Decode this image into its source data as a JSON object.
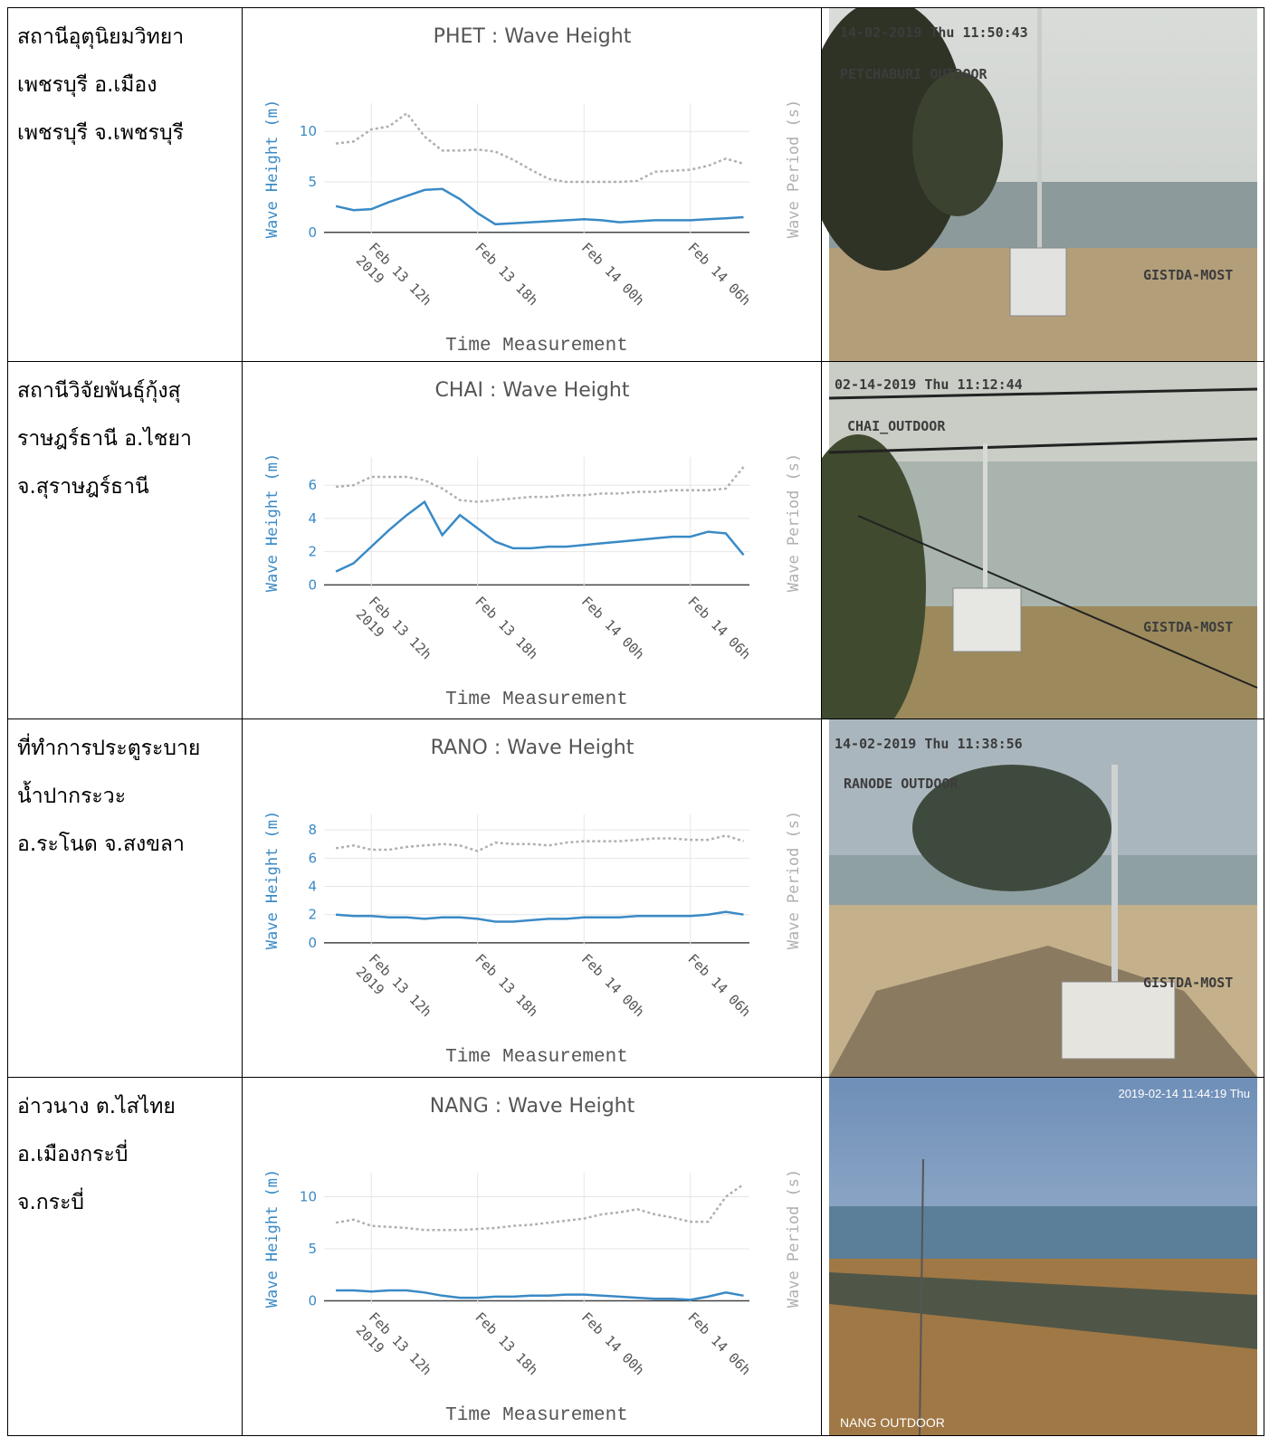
{
  "stations": [
    {
      "lines": [
        "สถานีอุตุนิยมวิทยา",
        "เพชรบุรี อ.เมือง",
        "เพชรบุรี จ.เพชรบุรี"
      ]
    },
    {
      "lines": [
        "สถานีวิจัยพันธุ์กุ้งสุ",
        "ราษฎร์ธานี อ.ไชยา",
        "จ.สุราษฎร์ธานี"
      ]
    },
    {
      "lines": [
        "ที่ทำการประตูระบาย",
        "น้ำปากระวะ",
        "อ.ระโนด จ.สงขลา"
      ]
    },
    {
      "lines": [
        "อ่าวนาง ต.ไสไทย",
        "อ.เมืองกระบี่",
        "จ.กระบี่"
      ]
    }
  ],
  "photos": [
    {
      "timestamp": "14-02-2019 Thu 11:50:43",
      "label": "PETCHABURI OUTDOOR",
      "watermark": "GISTDA-MOST"
    },
    {
      "timestamp": "02-14-2019 Thu 11:12:44",
      "label": "CHAI_OUTDOOR",
      "watermark": "GISTDA-MOST"
    },
    {
      "timestamp": "14-02-2019 Thu 11:38:56",
      "label": "RANODE OUTDOOR",
      "watermark": "GISTDA-MOST"
    },
    {
      "timestamp": "2019-02-14 11:44:19 Thu",
      "label": "NANG OUTDOOR"
    }
  ],
  "chart_data": [
    {
      "type": "line",
      "title": "PHET : Wave Height",
      "x_label": "Time Measurement",
      "y_label": "Wave Height (m)",
      "y2_label": "Wave Period (s)",
      "year": "2019",
      "grid": true,
      "x": [
        "2019-02-13T10:00",
        "2019-02-13T11:00",
        "2019-02-13T12:00",
        "2019-02-13T13:00",
        "2019-02-13T14:00",
        "2019-02-13T15:00",
        "2019-02-13T16:00",
        "2019-02-13T17:00",
        "2019-02-13T18:00",
        "2019-02-13T19:00",
        "2019-02-13T20:00",
        "2019-02-13T21:00",
        "2019-02-13T22:00",
        "2019-02-13T23:00",
        "2019-02-14T00:00",
        "2019-02-14T01:00",
        "2019-02-14T02:00",
        "2019-02-14T03:00",
        "2019-02-14T04:00",
        "2019-02-14T05:00",
        "2019-02-14T06:00",
        "2019-02-14T07:00",
        "2019-02-14T08:00",
        "2019-02-14T09:00"
      ],
      "xlim": [
        "2019-02-13T09:20",
        "2019-02-14T09:20"
      ],
      "xticks": [
        {
          "value": "2019-02-13T12:00",
          "label": "Feb 13 12h"
        },
        {
          "value": "2019-02-13T18:00",
          "label": "Feb 13 18h"
        },
        {
          "value": "2019-02-14T00:00",
          "label": "Feb 14 00h"
        },
        {
          "value": "2019-02-14T06:00",
          "label": "Feb 14 06h"
        }
      ],
      "ylim": [
        -0.2,
        12.8
      ],
      "yticks": [
        0,
        5,
        10
      ],
      "y2lim": [
        -0.2,
        12.8
      ],
      "series": [
        {
          "color": "#3a8ac6",
          "values": [
            2.6,
            2.2,
            2.3,
            3.0,
            3.6,
            4.2,
            4.3,
            3.3,
            1.9,
            0.8,
            0.9,
            1.0,
            1.1,
            1.2,
            1.3,
            1.2,
            1.0,
            1.1,
            1.2,
            1.2,
            1.2,
            1.3,
            1.4,
            1.5
          ]
        },
        {
          "color": "#b0b0b0",
          "axis": "y2",
          "dash": "dot",
          "values": [
            8.8,
            9.0,
            10.2,
            10.5,
            11.8,
            9.5,
            8.1,
            8.1,
            8.2,
            8.0,
            7.2,
            6.2,
            5.3,
            5.0,
            5.0,
            5.0,
            5.0,
            5.1,
            6.0,
            6.1,
            6.2,
            6.6,
            7.3,
            6.8
          ]
        }
      ]
    },
    {
      "type": "line",
      "title": "CHAI : Wave Height",
      "x_label": "Time Measurement",
      "y_label": "Wave Height (m)",
      "y2_label": "Wave Period (s)",
      "year": "2019",
      "grid": true,
      "x": [
        "2019-02-13T10:00",
        "2019-02-13T11:00",
        "2019-02-13T12:00",
        "2019-02-13T13:00",
        "2019-02-13T14:00",
        "2019-02-13T15:00",
        "2019-02-13T16:00",
        "2019-02-13T17:00",
        "2019-02-13T18:00",
        "2019-02-13T19:00",
        "2019-02-13T20:00",
        "2019-02-13T21:00",
        "2019-02-13T22:00",
        "2019-02-13T23:00",
        "2019-02-14T00:00",
        "2019-02-14T01:00",
        "2019-02-14T02:00",
        "2019-02-14T03:00",
        "2019-02-14T04:00",
        "2019-02-14T05:00",
        "2019-02-14T06:00",
        "2019-02-14T07:00",
        "2019-02-14T08:00",
        "2019-02-14T09:00"
      ],
      "xlim": [
        "2019-02-13T09:20",
        "2019-02-14T09:20"
      ],
      "xticks": [
        {
          "value": "2019-02-13T12:00",
          "label": "Feb 13 12h"
        },
        {
          "value": "2019-02-13T18:00",
          "label": "Feb 13 18h"
        },
        {
          "value": "2019-02-14T00:00",
          "label": "Feb 14 00h"
        },
        {
          "value": "2019-02-14T06:00",
          "label": "Feb 14 06h"
        }
      ],
      "ylim": [
        -0.2,
        7.7
      ],
      "yticks": [
        0,
        2,
        4,
        6
      ],
      "y2lim": [
        -0.2,
        7.7
      ],
      "series": [
        {
          "color": "#3a8ac6",
          "values": [
            0.8,
            1.3,
            2.3,
            3.3,
            4.2,
            5.0,
            3.0,
            4.2,
            3.4,
            2.6,
            2.2,
            2.2,
            2.3,
            2.3,
            2.4,
            2.5,
            2.6,
            2.7,
            2.8,
            2.9,
            2.9,
            3.2,
            3.1,
            1.8
          ]
        },
        {
          "color": "#b0b0b0",
          "axis": "y2",
          "dash": "dot",
          "values": [
            5.9,
            6.0,
            6.5,
            6.5,
            6.5,
            6.3,
            5.8,
            5.1,
            5.0,
            5.1,
            5.2,
            5.3,
            5.3,
            5.4,
            5.4,
            5.5,
            5.5,
            5.6,
            5.6,
            5.7,
            5.7,
            5.7,
            5.8,
            7.1
          ]
        }
      ]
    },
    {
      "type": "line",
      "title": "RANO : Wave Height",
      "x_label": "Time Measurement",
      "y_label": "Wave Height (m)",
      "y2_label": "Wave Period (s)",
      "year": "2019",
      "grid": true,
      "x": [
        "2019-02-13T10:00",
        "2019-02-13T11:00",
        "2019-02-13T12:00",
        "2019-02-13T13:00",
        "2019-02-13T14:00",
        "2019-02-13T15:00",
        "2019-02-13T16:00",
        "2019-02-13T17:00",
        "2019-02-13T18:00",
        "2019-02-13T19:00",
        "2019-02-13T20:00",
        "2019-02-13T21:00",
        "2019-02-13T22:00",
        "2019-02-13T23:00",
        "2019-02-14T00:00",
        "2019-02-14T01:00",
        "2019-02-14T02:00",
        "2019-02-14T03:00",
        "2019-02-14T04:00",
        "2019-02-14T05:00",
        "2019-02-14T06:00",
        "2019-02-14T07:00",
        "2019-02-14T08:00",
        "2019-02-14T09:00"
      ],
      "xlim": [
        "2019-02-13T09:20",
        "2019-02-14T09:20"
      ],
      "xticks": [
        {
          "value": "2019-02-13T12:00",
          "label": "Feb 13 12h"
        },
        {
          "value": "2019-02-13T18:00",
          "label": "Feb 13 18h"
        },
        {
          "value": "2019-02-14T00:00",
          "label": "Feb 14 00h"
        },
        {
          "value": "2019-02-14T06:00",
          "label": "Feb 14 06h"
        }
      ],
      "ylim": [
        -0.2,
        9.1
      ],
      "yticks": [
        0,
        2,
        4,
        6,
        8
      ],
      "y2lim": [
        -0.2,
        9.1
      ],
      "series": [
        {
          "color": "#3a8ac6",
          "values": [
            2.0,
            1.9,
            1.9,
            1.8,
            1.8,
            1.7,
            1.8,
            1.8,
            1.7,
            1.5,
            1.5,
            1.6,
            1.7,
            1.7,
            1.8,
            1.8,
            1.8,
            1.9,
            1.9,
            1.9,
            1.9,
            2.0,
            2.2,
            2.0
          ]
        },
        {
          "color": "#b0b0b0",
          "axis": "y2",
          "dash": "dot",
          "values": [
            6.7,
            6.9,
            6.6,
            6.6,
            6.8,
            6.9,
            7.0,
            6.9,
            6.5,
            7.1,
            7.0,
            7.0,
            6.9,
            7.1,
            7.2,
            7.2,
            7.2,
            7.3,
            7.4,
            7.4,
            7.3,
            7.3,
            7.6,
            7.2
          ]
        }
      ]
    },
    {
      "type": "line",
      "title": "NANG : Wave Height",
      "x_label": "Time Measurement",
      "y_label": "Wave Height (m)",
      "y2_label": "Wave Period (s)",
      "year": "2019",
      "grid": true,
      "x": [
        "2019-02-13T10:00",
        "2019-02-13T11:00",
        "2019-02-13T12:00",
        "2019-02-13T13:00",
        "2019-02-13T14:00",
        "2019-02-13T15:00",
        "2019-02-13T16:00",
        "2019-02-13T17:00",
        "2019-02-13T18:00",
        "2019-02-13T19:00",
        "2019-02-13T20:00",
        "2019-02-13T21:00",
        "2019-02-13T22:00",
        "2019-02-13T23:00",
        "2019-02-14T00:00",
        "2019-02-14T01:00",
        "2019-02-14T02:00",
        "2019-02-14T03:00",
        "2019-02-14T04:00",
        "2019-02-14T05:00",
        "2019-02-14T06:00",
        "2019-02-14T07:00",
        "2019-02-14T08:00",
        "2019-02-14T09:00"
      ],
      "xlim": [
        "2019-02-13T09:20",
        "2019-02-14T09:20"
      ],
      "xticks": [
        {
          "value": "2019-02-13T12:00",
          "label": "Feb 13 12h"
        },
        {
          "value": "2019-02-13T18:00",
          "label": "Feb 13 18h"
        },
        {
          "value": "2019-02-14T00:00",
          "label": "Feb 14 00h"
        },
        {
          "value": "2019-02-14T06:00",
          "label": "Feb 14 06h"
        }
      ],
      "ylim": [
        -0.3,
        12.3
      ],
      "yticks": [
        0,
        5,
        10
      ],
      "y2lim": [
        -0.3,
        12.3
      ],
      "series": [
        {
          "color": "#3a8ac6",
          "values": [
            1.0,
            1.0,
            0.9,
            1.0,
            1.0,
            0.8,
            0.5,
            0.3,
            0.3,
            0.4,
            0.4,
            0.5,
            0.5,
            0.6,
            0.6,
            0.5,
            0.4,
            0.3,
            0.2,
            0.2,
            0.1,
            0.4,
            0.8,
            0.5
          ]
        },
        {
          "color": "#b0b0b0",
          "axis": "y2",
          "dash": "dot",
          "values": [
            7.5,
            7.8,
            7.2,
            7.1,
            7.0,
            6.8,
            6.8,
            6.8,
            6.9,
            7.0,
            7.2,
            7.3,
            7.5,
            7.7,
            7.9,
            8.3,
            8.5,
            8.8,
            8.3,
            8.0,
            7.6,
            7.6,
            10.0,
            11.2
          ]
        }
      ]
    }
  ]
}
